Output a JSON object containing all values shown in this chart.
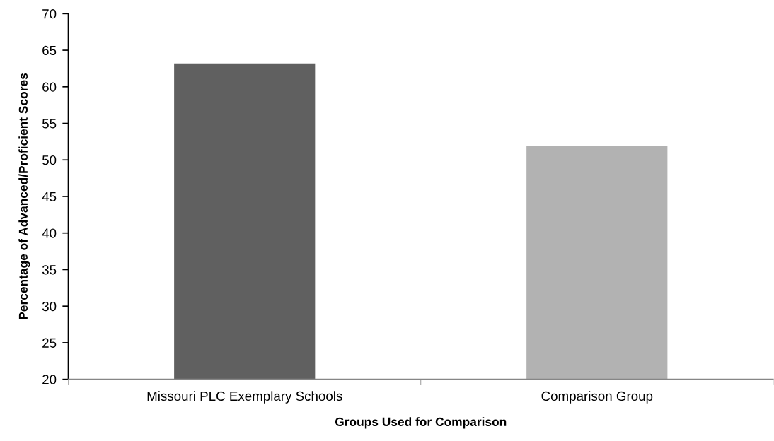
{
  "chart_data": {
    "type": "bar",
    "categories": [
      "Missouri PLC Exemplary Schools",
      "Comparison Group"
    ],
    "values": [
      63.2,
      51.9
    ],
    "colors": [
      "#606060",
      "#b2b2b2"
    ],
    "xlabel": "Groups Used for Comparison",
    "ylabel": "Percentage of Advanced/Proficient Scores",
    "ylim": [
      20,
      70
    ],
    "yticks": [
      20,
      25,
      30,
      35,
      40,
      45,
      50,
      55,
      60,
      65,
      70
    ]
  }
}
